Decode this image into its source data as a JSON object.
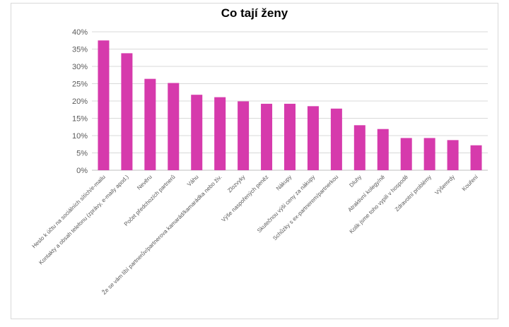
{
  "chart_data": {
    "type": "bar",
    "title": "Co tají ženy",
    "xlabel": "",
    "ylabel": "",
    "ylim": [
      0,
      40
    ],
    "y_ticks": [
      "0%",
      "5%",
      "10%",
      "15%",
      "20%",
      "25%",
      "30%",
      "35%",
      "40%"
    ],
    "grid": true,
    "legend": "none",
    "bar_color": "#d63aac",
    "categories": [
      "Heslo k účtu na sociálních sítích/e-mailu",
      "Kontakty a obsah telefonu (zprávy, e-maily apod.)",
      "Nevěru",
      "Počet předchozích partnerů",
      "Váhu",
      "Že se vám líbí partnerův/partnerova kamarád/kamarádka nebo živ.",
      "Zlozvyky",
      "Výše naspořených peněz",
      "Nákupy",
      "Skutečnou výši ceny za nákupy",
      "Schůzky s ex-partnerem/partnerkou",
      "Dluhy",
      "Atraktivní kolegy/ně",
      "Kolik jsme toho vypili v hospodě",
      "Zdravotní problémy",
      "Výšemrdy",
      "Kouření"
    ],
    "values": [
      37.5,
      33.8,
      26.4,
      25.2,
      21.8,
      21.1,
      19.9,
      19.2,
      19.2,
      18.5,
      17.8,
      13.0,
      11.9,
      9.3,
      9.3,
      8.7,
      7.2
    ]
  }
}
